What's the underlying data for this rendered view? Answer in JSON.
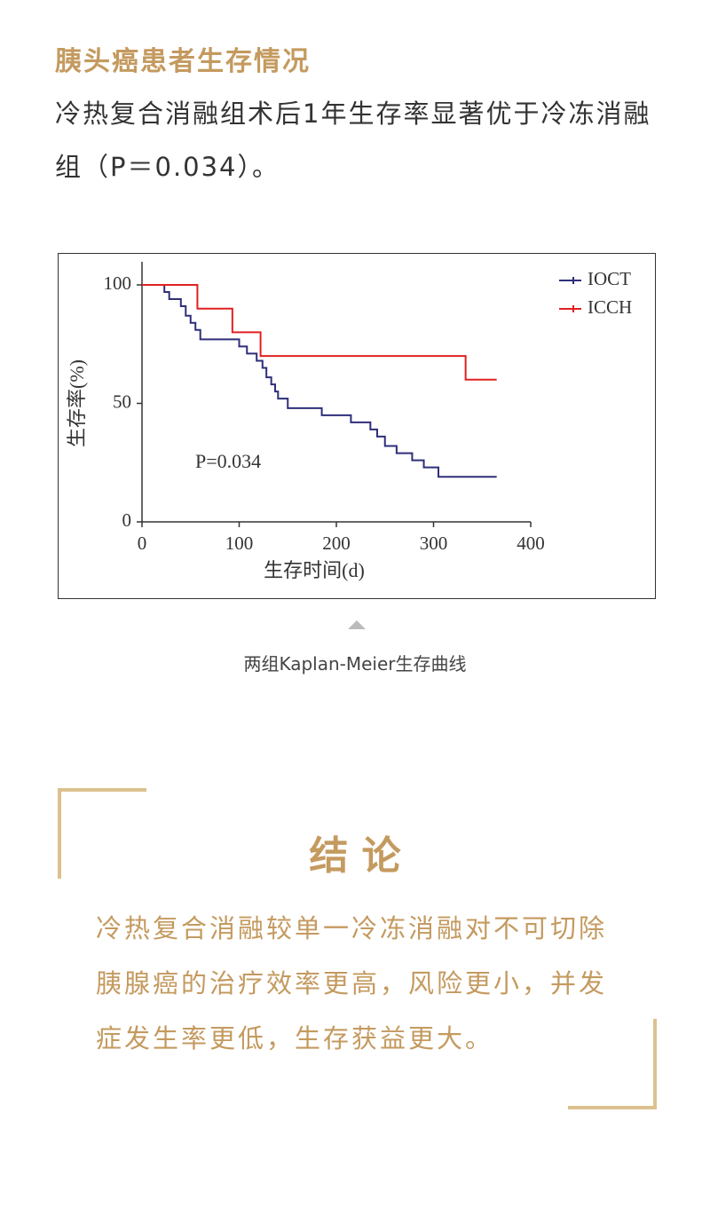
{
  "section": {
    "title": "胰头癌患者生存情况",
    "body": "冷热复合消融组术后1年生存率显著优于冷冻消融组（P＝0.034）。"
  },
  "chart_data": {
    "type": "step",
    "xlabel": "生存时间(d)",
    "ylabel": "生存率(%)",
    "annotation": "P=0.034",
    "xlim": [
      0,
      400
    ],
    "xticks": [
      0,
      100,
      200,
      300,
      400
    ],
    "ylim": [
      0,
      100
    ],
    "yticks": [
      0,
      50,
      100
    ],
    "legend": "top-right",
    "series": [
      {
        "name": "IOCT",
        "color": "#2e2f7a",
        "x": [
          0,
          23,
          28,
          40,
          45,
          50,
          55,
          60,
          100,
          108,
          118,
          124,
          128,
          133,
          137,
          140,
          150,
          185,
          215,
          235,
          242,
          250,
          262,
          278,
          290,
          305,
          365
        ],
        "values": [
          100,
          97,
          94,
          91,
          87,
          84,
          81,
          77,
          74,
          71,
          68,
          65,
          61,
          58,
          55,
          52,
          48,
          45,
          42,
          39,
          36,
          32,
          29,
          26,
          23,
          19,
          19
        ]
      },
      {
        "name": "ICCH",
        "color": "#e02020",
        "x": [
          0,
          57,
          93,
          122,
          333,
          365
        ],
        "values": [
          100,
          90,
          80,
          70,
          60,
          60
        ]
      }
    ]
  },
  "caption": "两组Kaplan-Meier生存曲线",
  "conclusion": {
    "title": "结 论",
    "body": "冷热复合消融较单一冷冻消融对不可切除胰腺癌的治疗效率更高，风险更小，并发症发生率更低，生存获益更大。"
  }
}
